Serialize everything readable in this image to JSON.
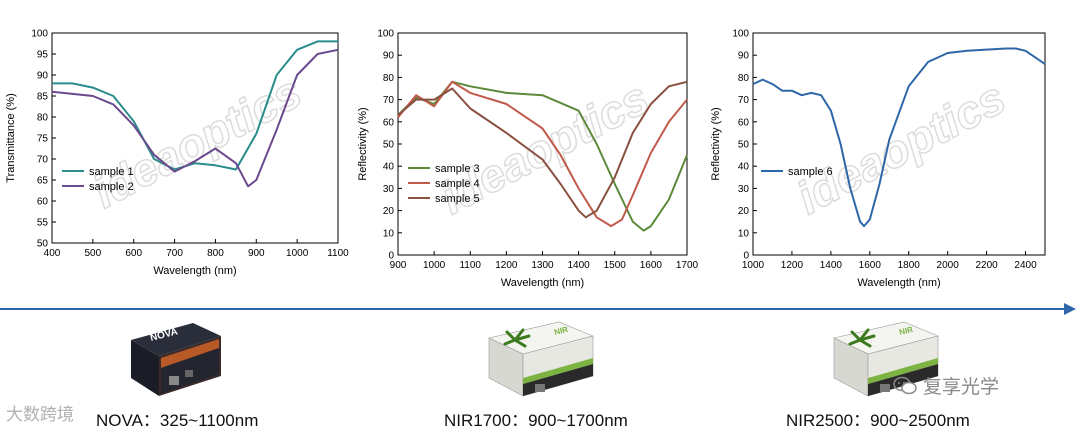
{
  "chart_data": [
    {
      "type": "line",
      "xlabel": "Wavelength (nm)",
      "ylabel": "Transmittance (%)",
      "xlim": [
        400,
        1100
      ],
      "ylim": [
        50,
        100
      ],
      "xticks": [
        "400",
        "500",
        "600",
        "700",
        "800",
        "900",
        "1000",
        "1100"
      ],
      "yticks": [
        "50",
        "55",
        "60",
        "65",
        "70",
        "75",
        "80",
        "85",
        "90",
        "95",
        "100"
      ],
      "legend_position": "left",
      "series": [
        {
          "name": "sample 1",
          "color": "#2a8c8c",
          "x": [
            400,
            450,
            500,
            550,
            600,
            650,
            700,
            750,
            800,
            850,
            900,
            950,
            1000,
            1050,
            1100
          ],
          "y": [
            88,
            88,
            87,
            85,
            79,
            70,
            67.5,
            69,
            68.5,
            67.5,
            76,
            90,
            96,
            98,
            98
          ]
        },
        {
          "name": "sample 2",
          "color": "#6b4a8e",
          "x": [
            400,
            450,
            500,
            550,
            600,
            650,
            700,
            750,
            800,
            850,
            880,
            900,
            950,
            1000,
            1050,
            1100
          ],
          "y": [
            86,
            85.5,
            85,
            83,
            78,
            71,
            67,
            69.5,
            72.5,
            69,
            63.5,
            65,
            77,
            90,
            95,
            96
          ]
        }
      ]
    },
    {
      "type": "line",
      "xlabel": "Wavelength (nm)",
      "ylabel": "Reflectivity (%)",
      "xlim": [
        900,
        1700
      ],
      "ylim": [
        0,
        100
      ],
      "xticks": [
        "900",
        "1000",
        "1100",
        "1200",
        "1300",
        "1400",
        "1500",
        "1600",
        "1700"
      ],
      "yticks": [
        "0",
        "10",
        "20",
        "30",
        "40",
        "50",
        "60",
        "70",
        "80",
        "90",
        "100"
      ],
      "legend_position": "left",
      "series": [
        {
          "name": "sample 3",
          "color": "#5a8a3a",
          "x": [
            900,
            950,
            1000,
            1050,
            1100,
            1200,
            1300,
            1400,
            1450,
            1500,
            1550,
            1580,
            1600,
            1650,
            1700
          ],
          "y": [
            63,
            71,
            68,
            78,
            76,
            73,
            72,
            65,
            50,
            32,
            15,
            11,
            13,
            25,
            45
          ]
        },
        {
          "name": "sample 4",
          "color": "#c05a4a",
          "x": [
            900,
            950,
            1000,
            1050,
            1100,
            1200,
            1300,
            1350,
            1400,
            1450,
            1490,
            1520,
            1550,
            1600,
            1650,
            1700
          ],
          "y": [
            62,
            72,
            67,
            78,
            73,
            68,
            57,
            45,
            30,
            17,
            13,
            16,
            27,
            46,
            60,
            70
          ]
        },
        {
          "name": "sample 5",
          "color": "#8a5040",
          "x": [
            900,
            950,
            1000,
            1050,
            1100,
            1200,
            1300,
            1350,
            1400,
            1420,
            1450,
            1500,
            1550,
            1600,
            1650,
            1700
          ],
          "y": [
            63,
            70,
            70,
            75,
            66,
            55,
            43,
            32,
            20,
            17,
            20,
            35,
            55,
            68,
            76,
            78
          ]
        }
      ]
    },
    {
      "type": "line",
      "xlabel": "Wavelength (nm)",
      "ylabel": "Reflectivity (%)",
      "xlim": [
        1000,
        2500
      ],
      "ylim": [
        0,
        100
      ],
      "xticks": [
        "1000",
        "1200",
        "1400",
        "1600",
        "1800",
        "2000",
        "2200",
        "2400"
      ],
      "yticks": [
        "0",
        "10",
        "20",
        "30",
        "40",
        "50",
        "60",
        "70",
        "80",
        "90",
        "100"
      ],
      "legend_position": "left",
      "series": [
        {
          "name": "sample 6",
          "color": "#2e67a8",
          "x": [
            1000,
            1050,
            1100,
            1150,
            1200,
            1250,
            1300,
            1350,
            1400,
            1450,
            1500,
            1550,
            1570,
            1600,
            1650,
            1700,
            1800,
            1900,
            2000,
            2100,
            2200,
            2300,
            2350,
            2400,
            2450,
            2500
          ],
          "y": [
            77,
            79,
            77,
            74,
            74,
            72,
            73,
            72,
            65,
            50,
            30,
            15,
            13,
            16,
            32,
            52,
            76,
            87,
            91,
            92,
            92.5,
            93,
            93,
            92,
            89,
            86
          ]
        }
      ]
    }
  ],
  "devices": [
    {
      "label": "NOVA：325~1100nm",
      "brand": "NOVA",
      "cube_text": ""
    },
    {
      "label": "NIR1700：900~1700nm",
      "brand": "",
      "cube_text": "NIR"
    },
    {
      "label": "NIR2500：900~2500nm",
      "brand": "",
      "cube_text": "NIR"
    }
  ],
  "watermark": "ideaoptics",
  "wechat": "复享光学",
  "corner_logo": "大数跨境",
  "colors": {
    "arrow": "#2e67a8",
    "watermark": "#dcdcdc"
  }
}
